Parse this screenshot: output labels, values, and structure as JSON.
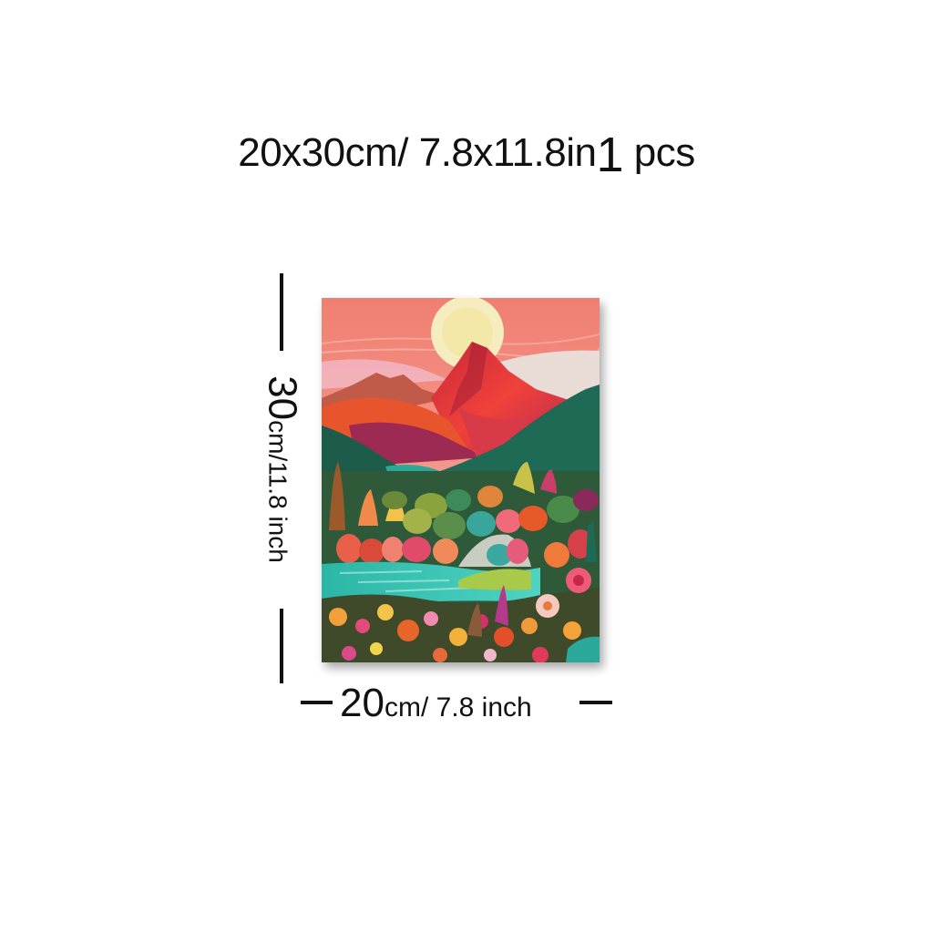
{
  "headline": {
    "size": "20x30cm/ 7.8x11.8in",
    "qty_num": "1",
    "qty_unit": " pcs"
  },
  "height_dim": {
    "value": "30",
    "unit": "cm/11.8 inch"
  },
  "width_dim": {
    "value": "20",
    "unit": "cm/ 7.8 inch"
  },
  "colors": {
    "sky": "#f2897a",
    "sun": "#f5edc0",
    "peak": "#e23a2e",
    "mountain_dark": "#1e6a55",
    "lake": "#2ec1b0",
    "ink": "#111111"
  }
}
